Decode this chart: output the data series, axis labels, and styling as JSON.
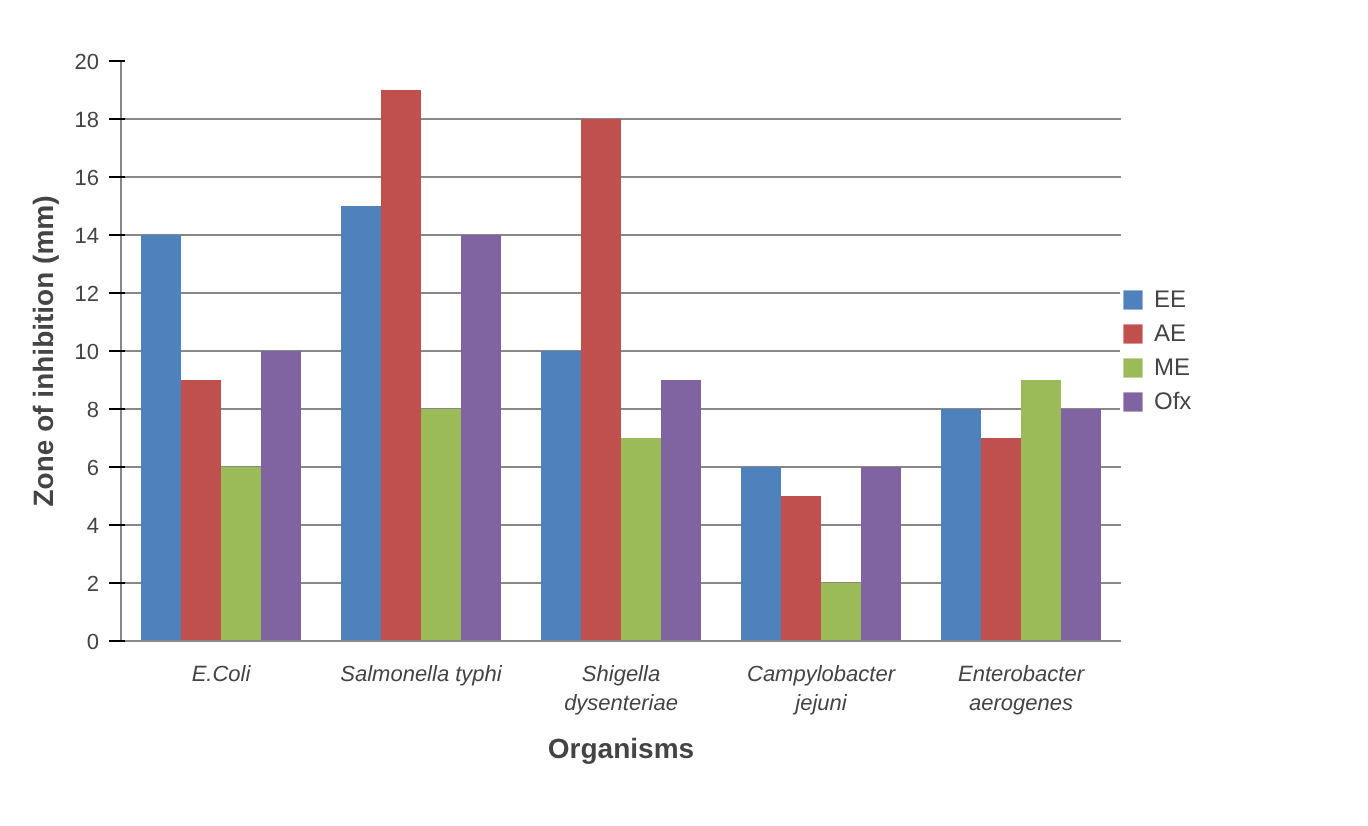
{
  "chart_data": {
    "type": "bar",
    "xlabel": "Organisms",
    "ylabel": "Zone of inhibition (mm)",
    "categories": [
      "E.Coli",
      "Salmonella typhi",
      "Shigella dysenteriae",
      "Campylobacter jejuni",
      "Enterobacter aerogenes"
    ],
    "series": [
      {
        "name": "EE",
        "color": "#4f81bd",
        "values": [
          14,
          15,
          10,
          6,
          8
        ]
      },
      {
        "name": "AE",
        "color": "#c0504d",
        "values": [
          9,
          19,
          18,
          5,
          7
        ]
      },
      {
        "name": "ME",
        "color": "#9bbb59",
        "values": [
          6,
          8,
          7,
          2,
          9
        ]
      },
      {
        "name": "Ofx",
        "color": "#8064a2",
        "values": [
          10,
          14,
          9,
          6,
          8
        ]
      }
    ],
    "ylim": [
      0,
      20
    ],
    "yticks": [
      0,
      2,
      4,
      6,
      8,
      10,
      12,
      14,
      16,
      18,
      20
    ],
    "grid": "y",
    "legend": "right"
  }
}
